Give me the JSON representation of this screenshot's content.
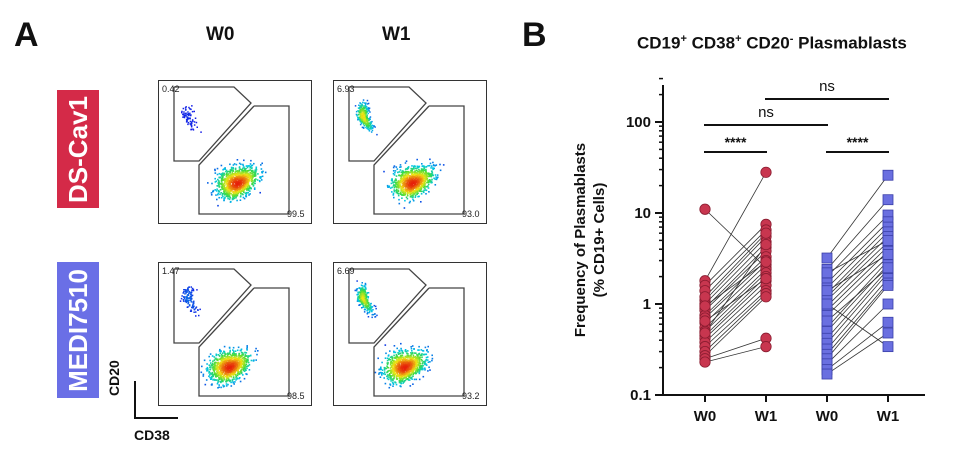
{
  "panel_a": {
    "letter": "A",
    "columns": [
      "W0",
      "W1"
    ],
    "rows": [
      {
        "label": "DS-Cav1",
        "color": "#d42a48",
        "plots": [
          {
            "upper_gate": "0.42",
            "lower_gate": "99.5"
          },
          {
            "upper_gate": "6.93",
            "lower_gate": "93.0"
          }
        ]
      },
      {
        "label": "MEDI7510",
        "color": "#6a6fe6",
        "plots": [
          {
            "upper_gate": "1.47",
            "lower_gate": "98.5"
          },
          {
            "upper_gate": "6.69",
            "lower_gate": "93.2"
          }
        ]
      }
    ],
    "axis_y": "CD20",
    "axis_x": "CD38"
  },
  "panel_b": {
    "letter": "B",
    "title_parts": [
      "CD19",
      "+",
      " CD38",
      "+",
      " CD20",
      "-",
      " Plasmablasts"
    ]
  },
  "chart_data": {
    "type": "scatter",
    "title": "CD19+ CD38+ CD20- Plasmablasts",
    "ylabel": "Frequency of Plasmablasts (% CD19+ Cells)",
    "ylabel_line1": "Frequency of Plasmablasts",
    "ylabel_line2": "(% CD19+ Cells)",
    "yscale": "log",
    "ylim": [
      0.1,
      300
    ],
    "yticks": [
      0.1,
      1,
      10,
      100
    ],
    "ytick_labels": [
      "0.1",
      "1",
      "10",
      "100"
    ],
    "categories": [
      "W0",
      "W1",
      "W0",
      "W1"
    ],
    "series": [
      {
        "name": "DS-Cav1",
        "color": "#c8364f",
        "marker": "circle",
        "w0": [
          11,
          1.8,
          1.6,
          1.4,
          1.1,
          1.0,
          0.9,
          0.85,
          0.75,
          0.7,
          0.62,
          0.55,
          0.5,
          0.45,
          0.42,
          0.38,
          0.34,
          0.3,
          0.27,
          0.25,
          0.23,
          1.2,
          0.95,
          0.65,
          0.48
        ],
        "w1": [
          2.5,
          28,
          7.5,
          6.5,
          5.5,
          4.8,
          4.2,
          3.8,
          3.3,
          3.0,
          2.7,
          2.4,
          2.2,
          2.0,
          1.8,
          1.6,
          1.4,
          1.3,
          1.2,
          0.42,
          0.34,
          6.0,
          2.9,
          1.9,
          4.5
        ]
      },
      {
        "name": "MEDI7510",
        "color": "#6a6fe0",
        "marker": "square",
        "w0": [
          3.2,
          2.4,
          2.0,
          1.7,
          1.5,
          1.3,
          1.2,
          1.1,
          0.95,
          0.85,
          0.75,
          0.55,
          0.5,
          0.42,
          0.37,
          0.32,
          0.28,
          0.25,
          0.22,
          0.19,
          0.17,
          1.0,
          0.65,
          2.2,
          1.4
        ],
        "w1": [
          26,
          14,
          9.5,
          8.0,
          7.0,
          6.2,
          5.5,
          4.8,
          4.3,
          3.8,
          3.3,
          3.0,
          2.7,
          2.4,
          2.2,
          1.9,
          1.7,
          1.6,
          1.0,
          0.63,
          0.48,
          0.34,
          2.5,
          5.0,
          3.5
        ]
      }
    ],
    "annotations": [
      {
        "from": 0,
        "to": 1,
        "text": "****"
      },
      {
        "from": 2,
        "to": 3,
        "text": "****"
      },
      {
        "from": 0,
        "to": 2,
        "text": "ns"
      },
      {
        "from": 1,
        "to": 3,
        "text": "ns"
      }
    ],
    "grid": false,
    "legend": "none"
  }
}
